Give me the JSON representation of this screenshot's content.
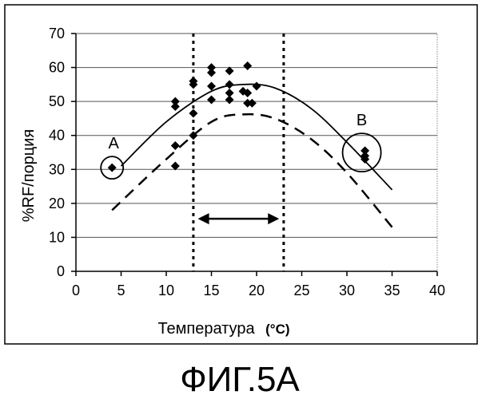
{
  "figure_caption": "ФИГ.5A",
  "chart_data": {
    "type": "scatter",
    "xlabel": "Температура",
    "xlabel_unit": "(°C)",
    "ylabel": "%RF/порция",
    "xlim": [
      0,
      40
    ],
    "ylim": [
      0,
      70
    ],
    "x_ticks": [
      0,
      5,
      10,
      15,
      20,
      25,
      30,
      35,
      40
    ],
    "y_ticks": [
      0,
      10,
      20,
      30,
      40,
      50,
      60,
      70
    ],
    "x_tick_labels": [
      "0",
      "5",
      "10",
      "15",
      "20",
      "25",
      "30",
      "35",
      "40"
    ],
    "y_tick_labels": [
      "0",
      "10",
      "20",
      "30",
      "40",
      "50",
      "60",
      "70"
    ],
    "grid": "horizontal",
    "series": [
      {
        "marker": "diamond",
        "points": [
          [
            4,
            30.5
          ],
          [
            11,
            50
          ],
          [
            11,
            48.5
          ],
          [
            11,
            37
          ],
          [
            11,
            31
          ],
          [
            13,
            56
          ],
          [
            13,
            55
          ],
          [
            13,
            46.5
          ],
          [
            13,
            40
          ],
          [
            15,
            60
          ],
          [
            15,
            58.5
          ],
          [
            15,
            54.5
          ],
          [
            15,
            50.5
          ],
          [
            17,
            59
          ],
          [
            17,
            55
          ],
          [
            17,
            52.5
          ],
          [
            17,
            50.5
          ],
          [
            18.5,
            53
          ],
          [
            19,
            60.5
          ],
          [
            19,
            52.5
          ],
          [
            19,
            49.5
          ],
          [
            19.5,
            49.5
          ],
          [
            20,
            54.5
          ],
          [
            32,
            35.5
          ],
          [
            32,
            34
          ],
          [
            32,
            33
          ]
        ]
      },
      {
        "style": "solid",
        "points": [
          [
            5,
            31
          ],
          [
            10,
            44
          ],
          [
            15,
            53
          ],
          [
            18.5,
            55
          ],
          [
            22,
            54
          ],
          [
            26,
            48
          ],
          [
            30,
            38
          ],
          [
            35,
            24
          ]
        ]
      },
      {
        "style": "dashed",
        "points": [
          [
            4,
            18
          ],
          [
            10,
            33
          ],
          [
            15,
            44
          ],
          [
            18.5,
            46.2
          ],
          [
            22,
            45
          ],
          [
            26,
            39
          ],
          [
            30,
            29
          ],
          [
            35,
            13
          ]
        ]
      }
    ],
    "vertical_lines": [
      13,
      23
    ],
    "range_arrow": {
      "from": 13.5,
      "to": 22.5,
      "y": 15
    },
    "annotations": [
      {
        "text": "A",
        "circle_at": [
          4,
          30.5
        ]
      },
      {
        "text": "B",
        "circle_at": [
          32,
          34.5
        ]
      }
    ]
  }
}
